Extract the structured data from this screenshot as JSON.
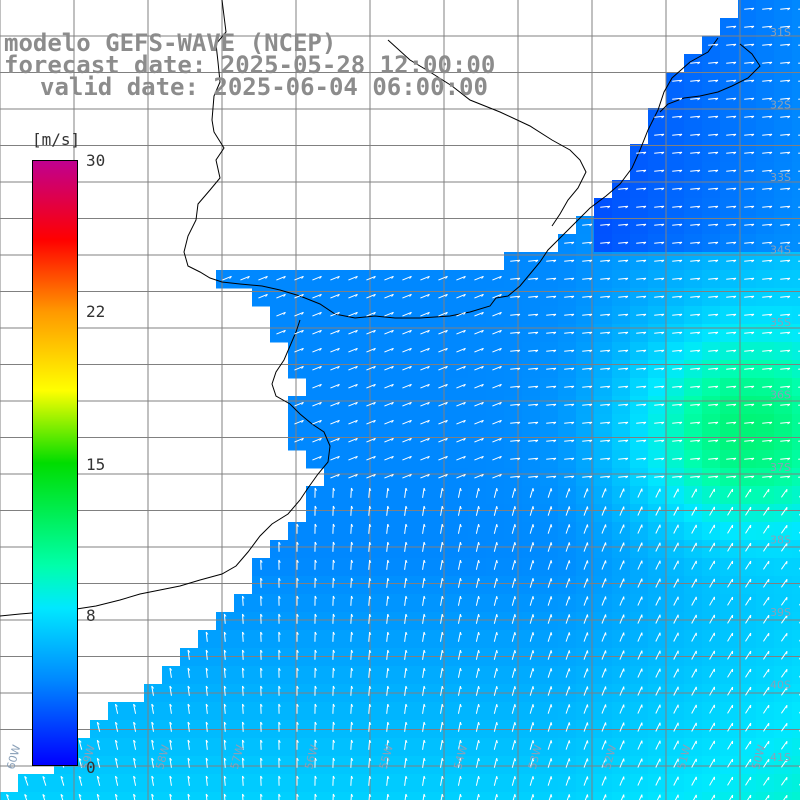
{
  "title": {
    "line1": "modelo GEFS-WAVE (NCEP)",
    "line2": "forecast date: 2025-05-28 12:00:00",
    "line3": "valid date: 2025-06-04 06:00:00"
  },
  "colorbar": {
    "unit": "[m/s]",
    "ticks": [
      "30",
      "22",
      "15",
      "8",
      "0"
    ],
    "tick_values": [
      30,
      22,
      15,
      8,
      0
    ]
  },
  "lat_labels": [
    "31S",
    "32S",
    "33S",
    "34S",
    "35S",
    "36S",
    "37S",
    "38S",
    "39S",
    "40S",
    "41S"
  ],
  "lon_labels": [
    "60W",
    "59W",
    "58W",
    "57W",
    "56W",
    "55W",
    "54W",
    "53W",
    "52W",
    "51W",
    "50W"
  ],
  "colors": {
    "land": "#ffffff",
    "coast": "#000000",
    "grid": "#808080",
    "arrow": "#ffffff",
    "title_text": "#8c8c8c"
  }
}
